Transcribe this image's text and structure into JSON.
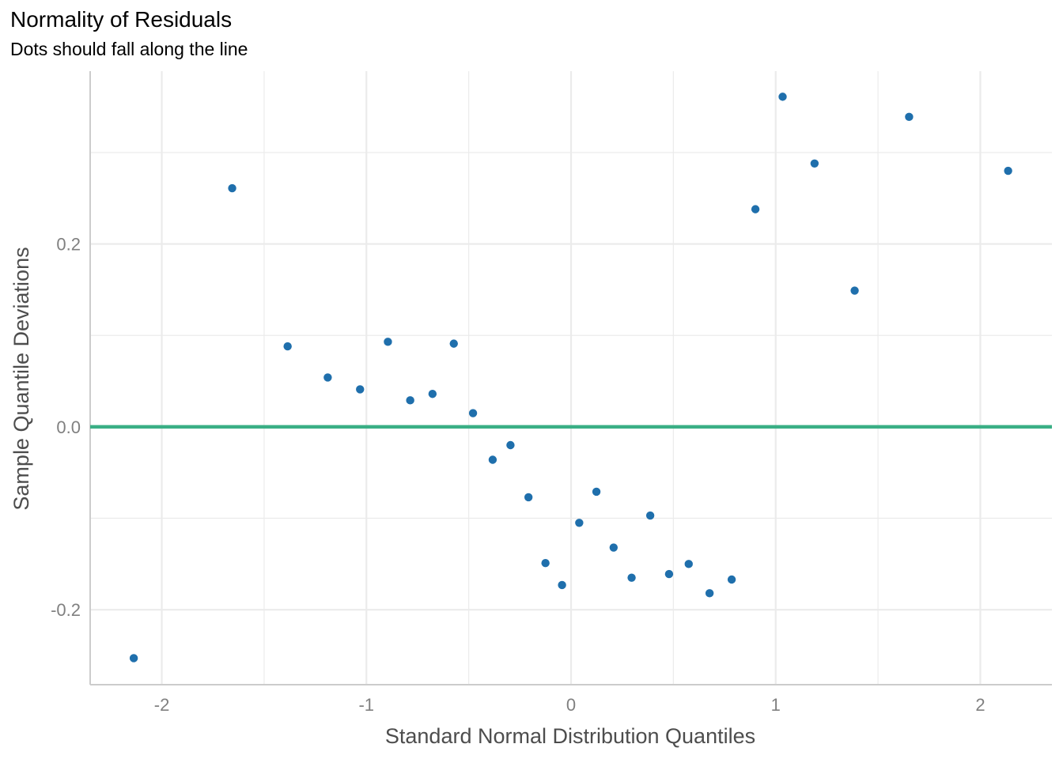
{
  "chart_data": {
    "type": "scatter",
    "title": "Normality of Residuals",
    "subtitle": "Dots should fall along the line",
    "xlabel": "Standard Normal Distribution Quantiles",
    "ylabel": "Sample Quantile Deviations",
    "xlim": [
      -2.35,
      2.35
    ],
    "ylim": [
      -0.282,
      0.389
    ],
    "x_ticks": [
      -2,
      -1,
      0,
      1,
      2
    ],
    "x_tick_labels": [
      "-2",
      "-1",
      "0",
      "1",
      "2"
    ],
    "x_minor_ticks": [
      -1.5,
      -0.5,
      0.5,
      1.5
    ],
    "y_ticks": [
      -0.2,
      0.0,
      0.2
    ],
    "y_tick_labels": [
      "-0.2",
      "0.0",
      "0.2"
    ],
    "y_minor_ticks": [
      -0.1,
      0.1,
      0.3
    ],
    "grid": true,
    "legend": "none",
    "colors": {
      "points": "#1f6fac",
      "reference_line": "#3aaf85"
    },
    "reference_line": {
      "y": 0.0
    },
    "series": [
      {
        "x": [
          -2.137,
          -1.656,
          -1.385,
          -1.189,
          -1.031,
          -0.895,
          -0.786,
          -0.677,
          -0.573,
          -0.479,
          -0.383,
          -0.296,
          -0.208,
          -0.125,
          -0.044,
          0.04,
          0.124,
          0.208,
          0.296,
          0.387,
          0.479,
          0.575,
          0.677,
          0.785,
          0.901,
          1.034,
          1.19,
          1.386,
          1.652,
          2.136
        ],
        "y": [
          -0.253,
          0.261,
          0.088,
          0.054,
          0.041,
          0.093,
          0.029,
          0.036,
          0.091,
          0.015,
          -0.036,
          -0.02,
          -0.077,
          -0.149,
          -0.173,
          -0.105,
          -0.071,
          -0.132,
          -0.165,
          -0.097,
          -0.161,
          -0.15,
          -0.182,
          -0.167,
          0.238,
          0.361,
          0.288,
          0.149,
          0.339,
          0.28
        ]
      }
    ]
  }
}
